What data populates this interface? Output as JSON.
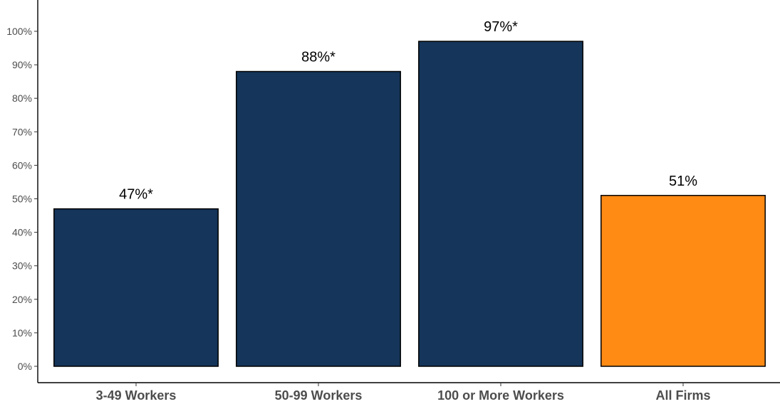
{
  "chart_data": {
    "type": "bar",
    "categories": [
      "3-49 Workers",
      "50-99 Workers",
      "100 or More Workers",
      "All Firms"
    ],
    "values": [
      47,
      88,
      97,
      51
    ],
    "data_labels": [
      "47%*",
      "88%*",
      "97%*",
      "51%"
    ],
    "bar_colors": [
      "#15355a",
      "#15355a",
      "#15355a",
      "#ff8a14"
    ],
    "bar_outline_color": "#000000",
    "ylim": [
      0,
      100
    ],
    "y_ticks": [
      0,
      10,
      20,
      30,
      40,
      50,
      60,
      70,
      80,
      90,
      100
    ],
    "y_tick_labels": [
      "0%",
      "10%",
      "20%",
      "30%",
      "40%",
      "50%",
      "60%",
      "70%",
      "80%",
      "90%",
      "100%"
    ],
    "title": "",
    "xlabel": "",
    "ylabel": "",
    "grid": false,
    "legend": "none"
  }
}
